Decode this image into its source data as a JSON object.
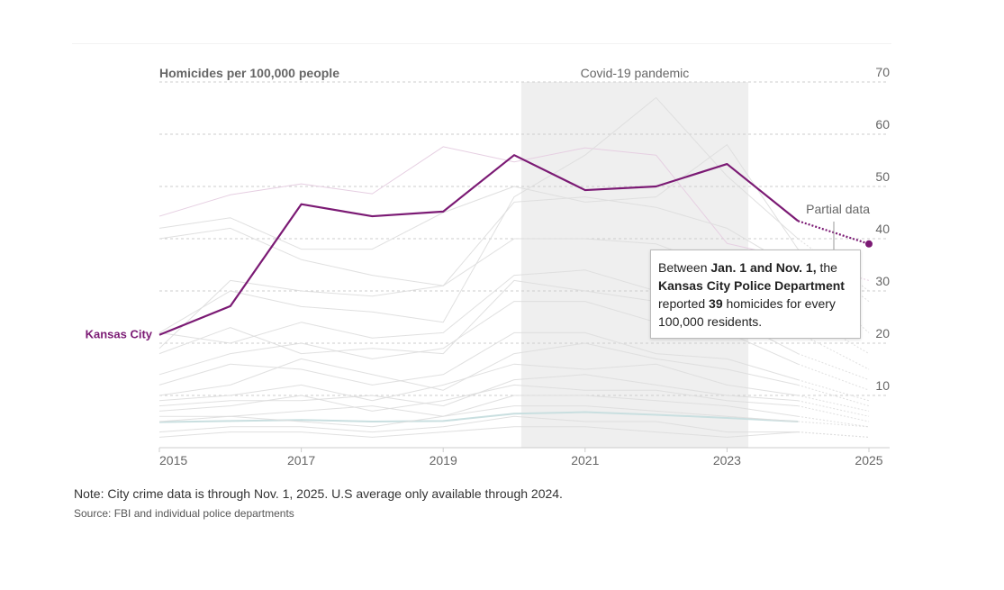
{
  "chart_data": {
    "type": "line",
    "ylabel": "Homicides per 100,000 people",
    "ylim": [
      0,
      70
    ],
    "yticks": [
      10,
      20,
      30,
      40,
      50,
      60,
      70
    ],
    "xlim": [
      2015,
      2025
    ],
    "xticks": [
      2015,
      2017,
      2019,
      2021,
      2023,
      2025
    ],
    "grid": "horizontal dashed",
    "shaded_region": {
      "label": "Covid-19 pandemic",
      "x": [
        2020.1,
        2023.3
      ]
    },
    "partial_label": "Partial data",
    "x": [
      2015,
      2016,
      2017,
      2018,
      2019,
      2020,
      2021,
      2022,
      2023,
      2024,
      2025
    ],
    "series": [
      {
        "name": "Kansas City",
        "highlight": true,
        "color": "#7b1a74",
        "values": [
          21.6,
          27.1,
          46.6,
          44.3,
          45.2,
          56.0,
          49.3,
          50.0,
          54.3,
          43.4,
          39
        ]
      },
      {
        "color": "#e6cfe2",
        "values": [
          44.3,
          48.4,
          50.5,
          48.6,
          57.6,
          54.7,
          57.4,
          56.0,
          39.1,
          36,
          32
        ]
      },
      {
        "color": "#c9dfe0",
        "values": [
          4.9,
          5.1,
          5.3,
          5.0,
          5.1,
          6.5,
          6.8,
          6.3,
          5.7,
          5.0,
          null
        ]
      },
      {
        "color": "#ddd",
        "values": [
          22,
          30,
          27,
          26,
          24,
          48,
          56,
          67,
          52,
          40,
          30
        ]
      },
      {
        "color": "#ddd",
        "values": [
          42,
          44,
          38,
          38,
          45,
          50,
          47,
          48,
          58,
          38,
          28
        ]
      },
      {
        "color": "#ddd",
        "values": [
          40,
          42,
          36,
          33,
          31,
          47,
          48,
          46,
          42,
          34,
          22
        ]
      },
      {
        "color": "#ddd",
        "values": [
          19,
          32,
          30,
          29,
          31,
          40,
          40,
          39,
          34,
          26,
          18
        ]
      },
      {
        "color": "#ddd",
        "values": [
          22,
          20,
          24,
          21,
          22,
          33,
          34,
          30,
          27,
          22,
          15
        ]
      },
      {
        "color": "#ddd",
        "values": [
          18,
          23,
          18,
          19,
          18,
          32,
          30,
          28,
          25,
          18,
          13
        ]
      },
      {
        "color": "#ddd",
        "values": [
          14,
          18,
          20,
          17,
          19,
          28,
          28,
          24,
          22,
          16,
          11
        ]
      },
      {
        "color": "#ddd",
        "values": [
          12,
          16,
          15,
          12,
          14,
          22,
          22,
          18,
          17,
          13,
          9
        ]
      },
      {
        "color": "#ddd",
        "values": [
          10,
          12,
          17,
          14,
          11,
          18,
          20,
          17,
          15,
          12,
          8
        ]
      },
      {
        "color": "#ddd",
        "values": [
          9,
          10,
          12,
          9,
          12,
          16,
          15,
          16,
          12,
          10,
          7
        ]
      },
      {
        "color": "#ddd",
        "values": [
          8,
          9,
          9,
          10,
          8,
          13,
          14,
          12,
          10,
          9,
          6
        ]
      },
      {
        "color": "#ddd",
        "values": [
          7,
          8,
          10,
          7,
          9,
          12,
          11,
          11,
          9,
          8,
          5
        ]
      },
      {
        "color": "#ddd",
        "values": [
          6,
          6,
          7,
          8,
          6,
          10,
          10,
          9,
          8,
          6,
          4
        ]
      },
      {
        "color": "#ddd",
        "values": [
          5,
          6,
          5,
          4,
          6,
          8,
          8,
          7,
          6,
          5,
          4
        ]
      },
      {
        "color": "#ddd",
        "values": [
          3,
          4,
          4,
          3,
          4,
          6,
          5,
          5,
          3,
          3,
          2
        ]
      },
      {
        "color": "#ddd",
        "values": [
          2,
          3,
          3,
          2,
          3,
          4,
          4,
          3,
          2,
          3,
          2
        ]
      }
    ]
  },
  "series_label": "Kansas City",
  "tooltip": {
    "t1": "Between ",
    "b1": "Jan. 1 and Nov. 1,",
    "t2": " the ",
    "b2": "Kansas City Police Department",
    "t3": " reported ",
    "b3": "39",
    "t4": " homicides for every 100,000 residents."
  },
  "note": "Note: City crime data is through Nov. 1, 2025. U.S average only available through 2024.",
  "source": "Source: FBI and individual police departments"
}
